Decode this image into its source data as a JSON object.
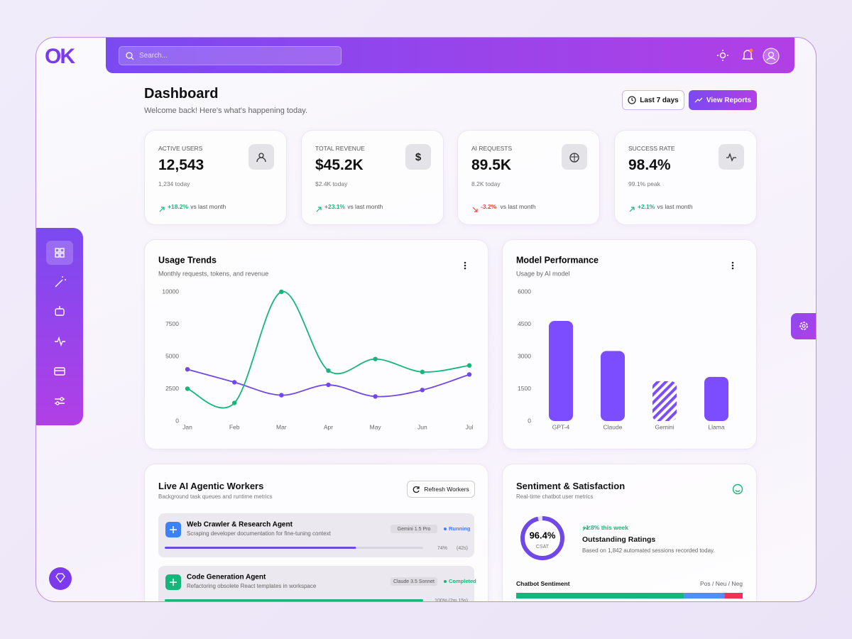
{
  "brand": "OK",
  "search_placeholder": "Search...",
  "page": {
    "title": "Dashboard",
    "subtitle": "Welcome back! Here's what's happening today.",
    "range_button": "Last 7 days",
    "reports_button": "View Reports"
  },
  "stats": [
    {
      "label": "ACTIVE USERS",
      "value": "12,543",
      "sub": "1,234 today",
      "change": "+18.2%",
      "trend": "up",
      "note": "vs last month"
    },
    {
      "label": "TOTAL REVENUE",
      "value": "$45.2K",
      "sub": "$2.4K today",
      "change": "+23.1%",
      "trend": "up",
      "note": "vs last month"
    },
    {
      "label": "AI REQUESTS",
      "value": "89.5K",
      "sub": "8.2K today",
      "change": "-3.2%",
      "trend": "down",
      "note": "vs last month"
    },
    {
      "label": "SUCCESS RATE",
      "value": "98.4%",
      "sub": "99.1% peak",
      "change": "+2.1%",
      "trend": "up",
      "note": "vs last month"
    }
  ],
  "chart_data": [
    {
      "type": "line",
      "title": "Usage Trends",
      "subtitle": "Monthly requests, tokens, and revenue",
      "categories": [
        "Jan",
        "Feb",
        "Mar",
        "Apr",
        "May",
        "Jun",
        "Jul"
      ],
      "series": [
        {
          "color": "#7048e8",
          "values": [
            4000,
            3000,
            2000,
            2800,
            1900,
            2400,
            3600
          ]
        },
        {
          "color": "#16b67a",
          "values": [
            2500,
            1400,
            10000,
            3900,
            4800,
            3800,
            4300
          ]
        }
      ],
      "ylim": [
        0,
        10000
      ],
      "yticks": [
        0,
        2500,
        5000,
        7500,
        10000
      ],
      "grid": false
    },
    {
      "type": "bar",
      "title": "Model Performance",
      "subtitle": "Usage by AI model",
      "categories": [
        "GPT-4",
        "Claude",
        "Gemini",
        "Llama"
      ],
      "values": [
        4650,
        3250,
        1850,
        2050
      ],
      "hatched": [
        false,
        false,
        true,
        false
      ],
      "color": "#7c4dff",
      "ylim": [
        0,
        6000
      ],
      "yticks": [
        0,
        1500,
        3000,
        4500,
        6000
      ],
      "grid": false
    }
  ],
  "workers": {
    "title": "Live AI Agentic Workers",
    "subtitle": "Background task queues and runtime metrics",
    "button": "Refresh Workers",
    "items": [
      {
        "name": "Web Crawler & Research Agent",
        "desc": "Scraping developer documentation for fine-tuning context",
        "model": "Gemini 1.5 Pro",
        "status": "Running",
        "status_color": "#3b82f6",
        "icon_color": "#3b82f6",
        "bar_color": "#6d4ae8",
        "progress": 74,
        "progress_label": "74%",
        "time": "(42s)"
      },
      {
        "name": "Code Generation Agent",
        "desc": "Refactoring obsolete React templates in workspace",
        "model": "Claude 3.5 Sonnet",
        "status": "Completed",
        "status_color": "#16b67a",
        "icon_color": "#16b67a",
        "bar_color": "#16b67a",
        "progress": 100,
        "progress_label": "100%",
        "time": "(2m 15s)"
      }
    ]
  },
  "sentiment": {
    "title": "Sentiment & Satisfaction",
    "subtitle": "Real-time chatbot user metrics",
    "csat": 96.4,
    "csat_label": "96.4%",
    "csat_caption": "CSAT",
    "weekly": "+1.8% this week",
    "headline": "Outstanding Ratings",
    "detail": "Based on 1,842 automated sessions recorded today.",
    "bar_label": "Chatbot Sentiment",
    "bar_legend": "Pos / Neu / Neg",
    "split": [
      74,
      18,
      8
    ],
    "split_colors": [
      "#16b67a",
      "#4f8ff7",
      "#f0325a"
    ]
  }
}
